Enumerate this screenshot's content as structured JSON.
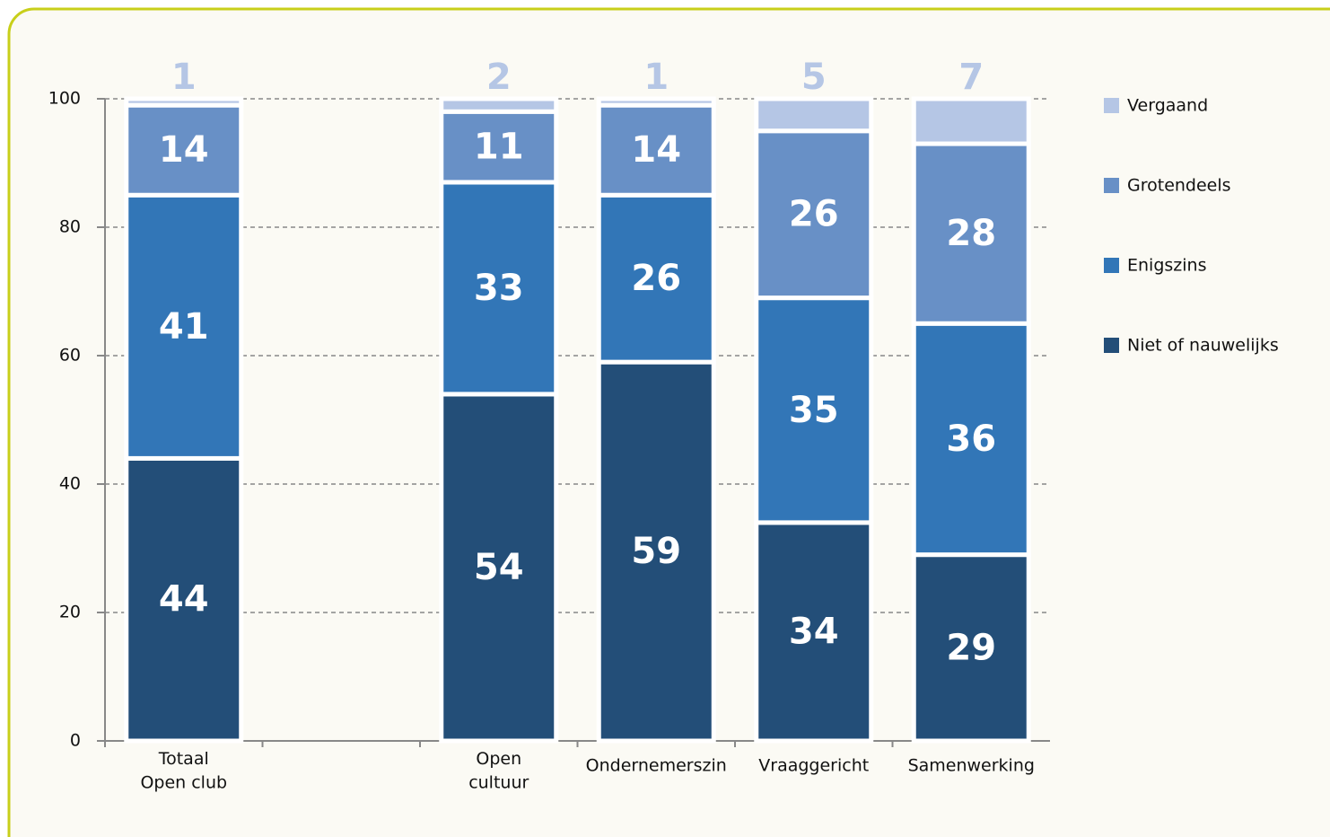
{
  "chart_data": {
    "type": "stacked_bar",
    "categories": [
      "Totaal\nOpen club",
      null,
      "Open\ncultuur",
      "Ondernemerszin",
      "Vraaggericht",
      "Samenwerking"
    ],
    "series": [
      {
        "name": "Niet of nauwelijks",
        "color": "#234e78",
        "values": [
          44,
          null,
          54,
          59,
          34,
          29
        ]
      },
      {
        "name": "Enigszins",
        "color": "#3276b7",
        "values": [
          41,
          null,
          33,
          26,
          35,
          36
        ]
      },
      {
        "name": "Grotendeels",
        "color": "#6890c6",
        "values": [
          14,
          null,
          11,
          14,
          26,
          28
        ]
      },
      {
        "name": "Vergaand",
        "color": "#b5c6e5",
        "values": [
          1,
          null,
          2,
          1,
          5,
          7
        ]
      }
    ],
    "ylim": [
      0,
      100
    ],
    "yticks": [
      0,
      20,
      40,
      60,
      80,
      100
    ],
    "grid": true,
    "legend": "right"
  }
}
